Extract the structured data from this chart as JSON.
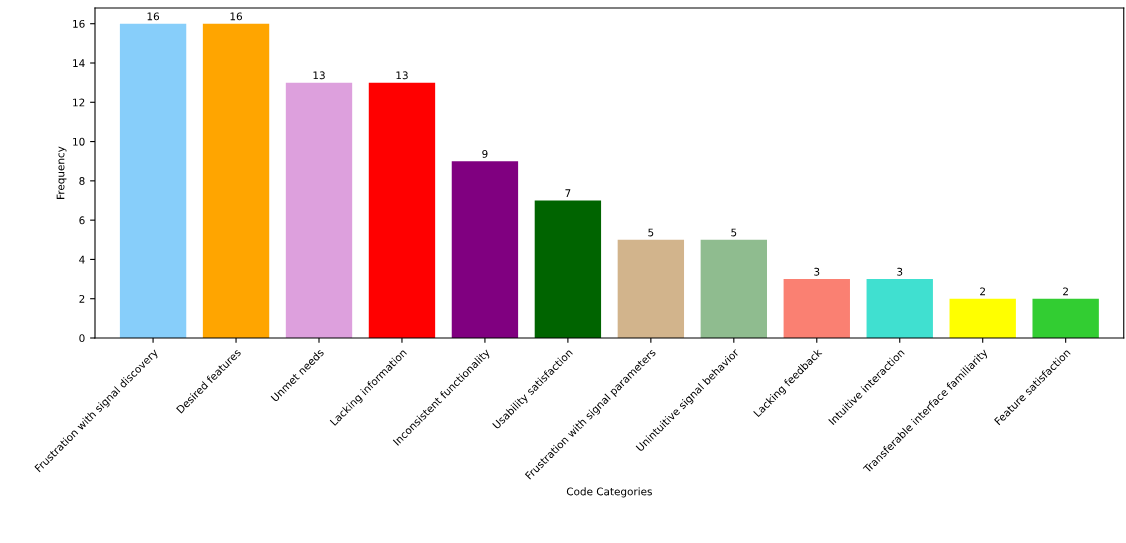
{
  "chart_data": {
    "type": "bar",
    "xlabel": "Code Categories",
    "ylabel": "Frequency",
    "categories": [
      "Frustration with signal discovery",
      "Desired features",
      "Unmet needs",
      "Lacking information",
      "Inconsistent functionality",
      "Usability satisfaction",
      "Frustration with signal parameters",
      "Unintuitive signal behavior",
      "Lacking feedback",
      "Intuitive interaction",
      "Transferable interface familiarity",
      "Feature satisfaction"
    ],
    "values": [
      16,
      16,
      13,
      13,
      9,
      7,
      5,
      5,
      3,
      3,
      2,
      2
    ],
    "colors": [
      "#87cefa",
      "#ffa500",
      "#dda0dd",
      "#ff0000",
      "#800080",
      "#006400",
      "#d2b48c",
      "#8fbc8f",
      "#fa8072",
      "#40e0d0",
      "#ffff00",
      "#32cd32"
    ],
    "ylim": [
      0,
      16.8
    ],
    "yticks": [
      0,
      2,
      4,
      6,
      8,
      10,
      12,
      14,
      16
    ],
    "data_labels": true
  }
}
